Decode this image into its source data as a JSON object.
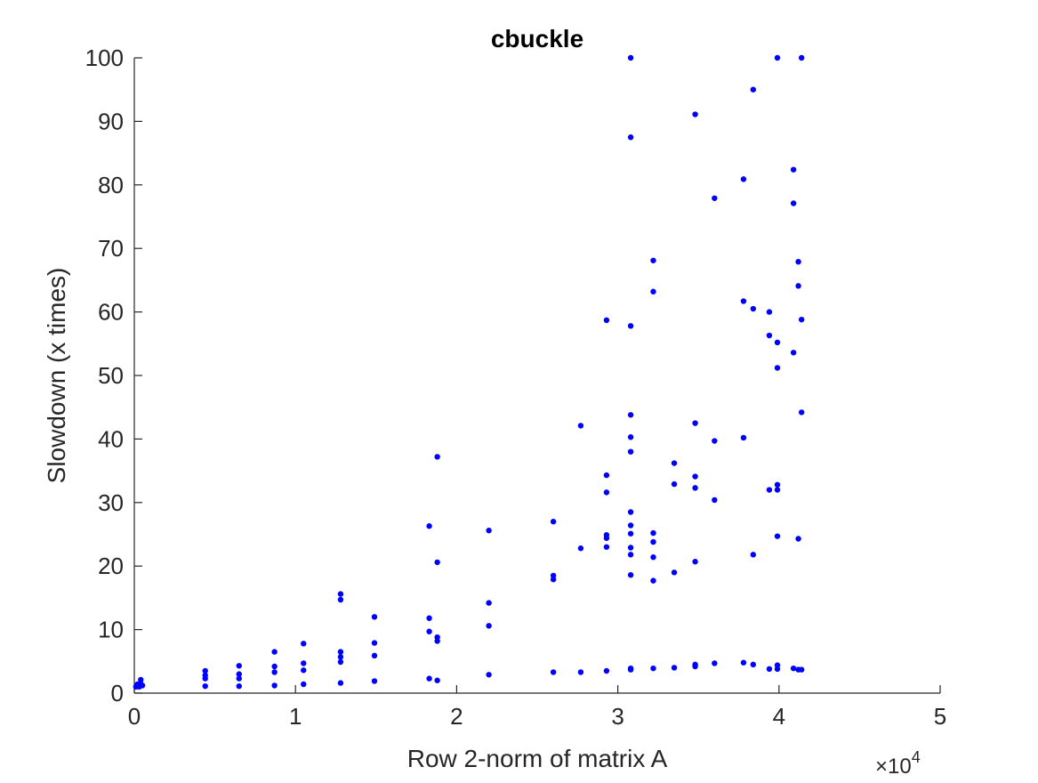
{
  "chart_data": {
    "type": "scatter",
    "title": "cbuckle",
    "xlabel": "Row 2-norm of matrix A",
    "ylabel": "Slowdown (x times)",
    "x_exponent_label": "×10",
    "x_exponent_power": "4",
    "xlim": [
      0,
      5
    ],
    "ylim": [
      0,
      100
    ],
    "x_ticks": [
      "0",
      "1",
      "2",
      "3",
      "4",
      "5"
    ],
    "y_ticks": [
      "0",
      "10",
      "20",
      "30",
      "40",
      "50",
      "60",
      "70",
      "80",
      "90",
      "100"
    ],
    "grid": false,
    "legend": false,
    "marker_color": "#0000FF",
    "x_scale": "x 10^4",
    "points": [
      [
        0.01,
        1.0
      ],
      [
        0.02,
        1.1
      ],
      [
        0.02,
        1.4
      ],
      [
        0.03,
        1.0
      ],
      [
        0.03,
        1.3
      ],
      [
        0.04,
        1.5
      ],
      [
        0.04,
        2.1
      ],
      [
        0.05,
        1.2
      ],
      [
        0.44,
        1.1
      ],
      [
        0.44,
        2.3
      ],
      [
        0.44,
        2.8
      ],
      [
        0.44,
        3.5
      ],
      [
        0.65,
        1.1
      ],
      [
        0.65,
        2.3
      ],
      [
        0.65,
        3.0
      ],
      [
        0.65,
        4.3
      ],
      [
        0.87,
        1.2
      ],
      [
        0.87,
        3.3
      ],
      [
        0.87,
        4.2
      ],
      [
        0.87,
        6.5
      ],
      [
        1.05,
        1.4
      ],
      [
        1.05,
        3.6
      ],
      [
        1.05,
        4.7
      ],
      [
        1.05,
        7.8
      ],
      [
        1.28,
        1.6
      ],
      [
        1.28,
        4.9
      ],
      [
        1.28,
        5.7
      ],
      [
        1.28,
        6.5
      ],
      [
        1.28,
        14.7
      ],
      [
        1.28,
        15.6
      ],
      [
        1.49,
        1.9
      ],
      [
        1.49,
        5.9
      ],
      [
        1.49,
        7.9
      ],
      [
        1.49,
        12.0
      ],
      [
        1.83,
        2.3
      ],
      [
        1.83,
        9.7
      ],
      [
        1.83,
        11.8
      ],
      [
        1.83,
        26.3
      ],
      [
        1.88,
        2.0
      ],
      [
        1.88,
        8.2
      ],
      [
        1.88,
        8.8
      ],
      [
        1.88,
        20.6
      ],
      [
        1.88,
        37.2
      ],
      [
        2.2,
        2.9
      ],
      [
        2.2,
        10.6
      ],
      [
        2.2,
        14.2
      ],
      [
        2.2,
        25.6
      ],
      [
        2.6,
        3.3
      ],
      [
        2.6,
        17.9
      ],
      [
        2.6,
        18.5
      ],
      [
        2.6,
        27.0
      ],
      [
        2.77,
        3.3
      ],
      [
        2.77,
        22.8
      ],
      [
        2.77,
        42.1
      ],
      [
        2.93,
        3.5
      ],
      [
        2.93,
        23.0
      ],
      [
        2.93,
        24.4
      ],
      [
        2.93,
        24.9
      ],
      [
        2.93,
        31.6
      ],
      [
        2.93,
        34.3
      ],
      [
        2.93,
        58.7
      ],
      [
        3.08,
        3.7
      ],
      [
        3.08,
        3.9
      ],
      [
        3.08,
        18.6
      ],
      [
        3.08,
        21.8
      ],
      [
        3.08,
        22.9
      ],
      [
        3.08,
        25.1
      ],
      [
        3.08,
        26.4
      ],
      [
        3.08,
        28.5
      ],
      [
        3.08,
        38.0
      ],
      [
        3.08,
        40.3
      ],
      [
        3.08,
        43.8
      ],
      [
        3.08,
        57.8
      ],
      [
        3.08,
        87.5
      ],
      [
        3.08,
        100.0
      ],
      [
        3.22,
        3.9
      ],
      [
        3.22,
        17.7
      ],
      [
        3.22,
        21.4
      ],
      [
        3.22,
        23.8
      ],
      [
        3.22,
        25.2
      ],
      [
        3.22,
        63.2
      ],
      [
        3.22,
        68.1
      ],
      [
        3.35,
        4.0
      ],
      [
        3.35,
        19.0
      ],
      [
        3.35,
        32.9
      ],
      [
        3.35,
        36.2
      ],
      [
        3.48,
        4.2
      ],
      [
        3.48,
        4.5
      ],
      [
        3.48,
        20.7
      ],
      [
        3.48,
        32.3
      ],
      [
        3.48,
        34.1
      ],
      [
        3.48,
        42.5
      ],
      [
        3.48,
        91.1
      ],
      [
        3.6,
        4.7
      ],
      [
        3.6,
        30.4
      ],
      [
        3.6,
        39.7
      ],
      [
        3.6,
        77.9
      ],
      [
        3.78,
        4.8
      ],
      [
        3.78,
        40.2
      ],
      [
        3.78,
        61.7
      ],
      [
        3.78,
        80.9
      ],
      [
        3.84,
        4.5
      ],
      [
        3.84,
        21.8
      ],
      [
        3.84,
        60.5
      ],
      [
        3.84,
        95.0
      ],
      [
        3.94,
        3.8
      ],
      [
        3.94,
        32.0
      ],
      [
        3.94,
        56.3
      ],
      [
        3.94,
        60.0
      ],
      [
        3.99,
        3.8
      ],
      [
        3.99,
        4.4
      ],
      [
        3.99,
        24.7
      ],
      [
        3.99,
        32.0
      ],
      [
        3.99,
        32.8
      ],
      [
        3.99,
        51.2
      ],
      [
        3.99,
        55.2
      ],
      [
        3.99,
        100.0
      ],
      [
        4.09,
        3.9
      ],
      [
        4.09,
        53.6
      ],
      [
        4.09,
        77.1
      ],
      [
        4.09,
        82.4
      ],
      [
        4.12,
        3.7
      ],
      [
        4.12,
        24.3
      ],
      [
        4.12,
        64.1
      ],
      [
        4.12,
        67.9
      ],
      [
        4.14,
        3.7
      ],
      [
        4.14,
        44.2
      ],
      [
        4.14,
        58.8
      ],
      [
        4.14,
        100.0
      ]
    ]
  }
}
